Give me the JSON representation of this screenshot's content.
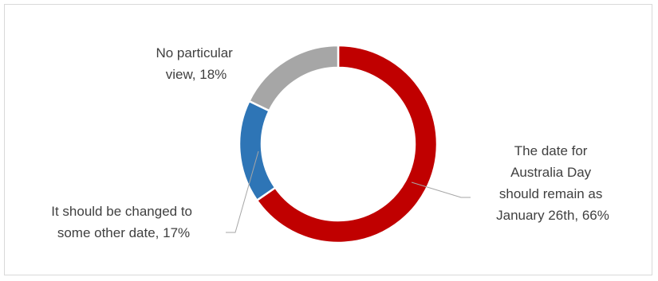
{
  "chart_data": {
    "type": "pie",
    "donut": true,
    "title": "",
    "slices": [
      {
        "lines": [
          "The date for",
          "Australia Day",
          "should remain as",
          "January 26th, 66%"
        ],
        "value": 66,
        "color": "#c00000"
      },
      {
        "lines": [
          "It should be changed to",
          "some other date, 17%"
        ],
        "value": 17,
        "color": "#2e75b6"
      },
      {
        "lines": [
          "No particular",
          "view, 18%"
        ],
        "value": 18,
        "color": "#a6a6a6"
      }
    ],
    "legend": "none",
    "leader_line_color": "#a6a6a6"
  }
}
